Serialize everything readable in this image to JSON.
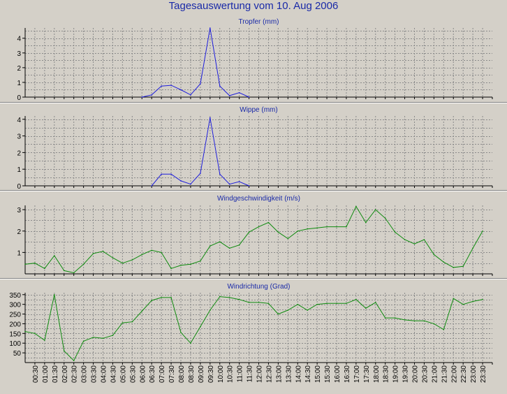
{
  "page_title": "Tagesauswertung vom 10. Aug 2006",
  "colors": {
    "title": "#1a2aa8",
    "rain_line": "#1f1fdc",
    "wind_line": "#0e8a0e",
    "grid": "#8a8a8a",
    "axis": "#000000",
    "background": "#d4d0c8"
  },
  "x_axis": {
    "tick_labels": [
      "00:30",
      "01:00",
      "01:30",
      "02:00",
      "02:30",
      "03:00",
      "03:30",
      "04:00",
      "04:30",
      "05:00",
      "05:30",
      "06:00",
      "06:30",
      "07:00",
      "07:30",
      "08:00",
      "08:30",
      "09:00",
      "09:30",
      "10:00",
      "10:30",
      "11:00",
      "11:30",
      "12:00",
      "12:30",
      "13:00",
      "13:30",
      "14:00",
      "14:30",
      "15:00",
      "15:30",
      "16:00",
      "16:30",
      "17:00",
      "17:30",
      "18:00",
      "18:30",
      "19:00",
      "19:30",
      "20:00",
      "20:30",
      "21:00",
      "21:30",
      "22:00",
      "22:30",
      "23:00",
      "23:30"
    ]
  },
  "chart_data": [
    {
      "type": "line",
      "title": "Tropfer (mm)",
      "xlabel": "",
      "ylabel": "",
      "ylim": [
        0,
        4.7
      ],
      "yticks": [
        0,
        1,
        2,
        3,
        4
      ],
      "grid": true,
      "line_color": "#1f1fdc",
      "x": [
        "06:00",
        "06:30",
        "07:00",
        "07:30",
        "08:00",
        "08:30",
        "09:00",
        "09:30",
        "10:00",
        "10:30",
        "11:00",
        "11:30"
      ],
      "values": [
        0,
        0.15,
        0.75,
        0.8,
        0.5,
        0.15,
        0.9,
        4.7,
        0.75,
        0.1,
        0.3,
        0
      ]
    },
    {
      "type": "line",
      "title": "Wippe (mm)",
      "xlabel": "",
      "ylabel": "",
      "ylim": [
        0,
        4.2
      ],
      "yticks": [
        0,
        1,
        2,
        3,
        4
      ],
      "grid": true,
      "line_color": "#1f1fdc",
      "x": [
        "06:30",
        "07:00",
        "07:30",
        "08:00",
        "08:30",
        "09:00",
        "09:30",
        "10:00",
        "10:30",
        "11:00",
        "11:30"
      ],
      "values": [
        0,
        0.7,
        0.7,
        0.3,
        0.1,
        0.75,
        4.1,
        0.7,
        0.1,
        0.25,
        0
      ]
    },
    {
      "type": "line",
      "title": "Windgeschwindigkeit (m/s)",
      "xlabel": "",
      "ylabel": "",
      "ylim": [
        0,
        3.2
      ],
      "yticks": [
        1,
        2,
        3
      ],
      "grid": true,
      "line_color": "#0e8a0e",
      "x": [
        "00:00",
        "00:30",
        "01:00",
        "01:30",
        "02:00",
        "02:30",
        "03:00",
        "03:30",
        "04:00",
        "04:30",
        "05:00",
        "05:30",
        "06:00",
        "06:30",
        "07:00",
        "07:30",
        "08:00",
        "08:30",
        "09:00",
        "09:30",
        "10:00",
        "10:30",
        "11:00",
        "11:30",
        "12:00",
        "12:30",
        "13:00",
        "13:30",
        "14:00",
        "14:30",
        "15:00",
        "15:30",
        "16:00",
        "16:30",
        "17:00",
        "17:30",
        "18:00",
        "18:30",
        "19:00",
        "19:30",
        "20:00",
        "20:30",
        "21:00",
        "21:30",
        "22:00",
        "22:30",
        "23:00",
        "23:30"
      ],
      "values": [
        0.45,
        0.5,
        0.25,
        0.85,
        0.15,
        0.05,
        0.45,
        0.95,
        1.05,
        0.75,
        0.5,
        0.65,
        0.9,
        1.1,
        1.0,
        0.25,
        0.4,
        0.45,
        0.6,
        1.3,
        1.5,
        1.2,
        1.35,
        1.95,
        2.2,
        2.4,
        1.95,
        1.65,
        2.0,
        2.1,
        2.15,
        2.2,
        2.2,
        2.2,
        3.15,
        2.4,
        3.0,
        2.6,
        1.95,
        1.6,
        1.4,
        1.6,
        0.9,
        0.55,
        0.3,
        0.35,
        1.2,
        2.0
      ]
    },
    {
      "type": "line",
      "title": "Windrichtung (Grad)",
      "xlabel": "",
      "ylabel": "",
      "ylim": [
        0,
        360
      ],
      "yticks": [
        50,
        100,
        150,
        200,
        250,
        300,
        350
      ],
      "grid": true,
      "line_color": "#0e8a0e",
      "x": [
        "00:00",
        "00:30",
        "01:00",
        "01:30",
        "02:00",
        "02:30",
        "03:00",
        "03:30",
        "04:00",
        "04:30",
        "05:00",
        "05:30",
        "06:00",
        "06:30",
        "07:00",
        "07:30",
        "08:00",
        "08:30",
        "09:00",
        "09:30",
        "10:00",
        "10:30",
        "11:00",
        "11:30",
        "12:00",
        "12:30",
        "13:00",
        "13:30",
        "14:00",
        "14:30",
        "15:00",
        "15:30",
        "16:00",
        "16:30",
        "17:00",
        "17:30",
        "18:00",
        "18:30",
        "19:00",
        "19:30",
        "20:00",
        "20:30",
        "21:00",
        "21:30",
        "22:00",
        "22:30",
        "23:00",
        "23:30"
      ],
      "values": [
        160,
        150,
        115,
        350,
        60,
        10,
        110,
        130,
        125,
        140,
        205,
        210,
        265,
        320,
        335,
        335,
        155,
        100,
        185,
        270,
        340,
        335,
        325,
        310,
        310,
        305,
        250,
        270,
        300,
        270,
        300,
        305,
        305,
        305,
        325,
        280,
        310,
        230,
        230,
        220,
        215,
        215,
        200,
        170,
        330,
        300,
        315,
        325
      ]
    }
  ]
}
